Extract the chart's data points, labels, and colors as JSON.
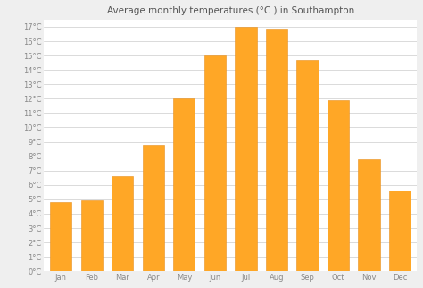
{
  "title": "Average monthly temperatures (°C ) in Southampton",
  "months": [
    "Jan",
    "Feb",
    "Mar",
    "Apr",
    "May",
    "Jun",
    "Jul",
    "Aug",
    "Sep",
    "Oct",
    "Nov",
    "Dec"
  ],
  "values": [
    4.8,
    4.9,
    6.6,
    8.8,
    12.0,
    15.0,
    17.0,
    16.9,
    14.7,
    11.9,
    7.8,
    5.6
  ],
  "bar_color": "#FFA726",
  "bar_edge_color": "#E69020",
  "ylim": [
    0,
    17.5
  ],
  "background_color": "#efefef",
  "plot_bg_color": "#ffffff",
  "grid_color": "#cccccc",
  "title_fontsize": 7.5,
  "tick_fontsize": 6.0,
  "title_color": "#555555",
  "tick_color": "#888888",
  "bar_width": 0.7
}
